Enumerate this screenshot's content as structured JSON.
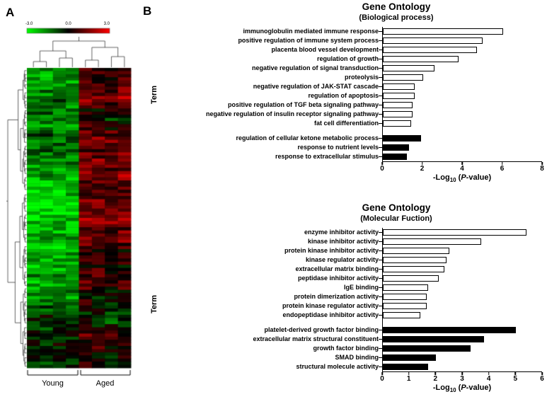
{
  "figure": {
    "panelA_label": "A",
    "panelB_label": "B"
  },
  "panelA": {
    "colorbar": {
      "ticks": [
        "-3.0",
        "0.0",
        "3.0"
      ]
    },
    "group_labels": [
      "Young",
      "Aged"
    ],
    "heatmap": {
      "rows": 96,
      "cols": 8,
      "young_cols": 4,
      "seed": 11,
      "vmin": -3,
      "vmax": 3,
      "low_color": "#00ff00",
      "mid_color": "#000000",
      "high_color": "#ff0000"
    }
  },
  "chart_data": [
    {
      "type": "heatmap",
      "description": "hierarchically clustered gene expression heatmap",
      "rows": 96,
      "cols": 8,
      "column_groups": [
        {
          "label": "Young",
          "cols": 4
        },
        {
          "label": "Aged",
          "cols": 4
        }
      ],
      "scale": {
        "min": -3.0,
        "max": 3.0,
        "low": "#00ff00",
        "mid": "#000000",
        "high": "#ff0000"
      }
    },
    {
      "type": "bar",
      "orientation": "horizontal",
      "title": "Gene Ontology",
      "subtitle": "(Biological process)",
      "ylabel": "Term",
      "xlabel": "-Log10 (P-value)",
      "xlim": [
        0,
        8
      ],
      "xticks": [
        0,
        2,
        4,
        6,
        8
      ],
      "series": [
        {
          "name": "open-bars",
          "fill": "#ffffff",
          "bars": [
            {
              "label": "immunoglobulin mediated immune response",
              "value": 6.0
            },
            {
              "label": "positive regulation of immune system process",
              "value": 5.0
            },
            {
              "label": "placenta blood vessel development",
              "value": 4.7
            },
            {
              "label": "regulation of growth",
              "value": 3.8
            },
            {
              "label": "negative regulation of signal transduction",
              "value": 2.6
            },
            {
              "label": "proteolysis",
              "value": 2.0
            },
            {
              "label": "negative regulation of JAK-STAT cascade",
              "value": 1.6
            },
            {
              "label": "regulation of apoptosis",
              "value": 1.6
            },
            {
              "label": "positive regulation of TGF beta signaling pathway",
              "value": 1.5
            },
            {
              "label": "negative regulation of insulin receptor signaling pathway",
              "value": 1.5
            },
            {
              "label": "fat cell differentiation",
              "value": 1.4
            }
          ]
        },
        {
          "name": "filled-bars",
          "fill": "#000000",
          "bars": [
            {
              "label": "regulation of cellular ketone metabolic process",
              "value": 1.9
            },
            {
              "label": "response to nutrient levels",
              "value": 1.3
            },
            {
              "label": "response to extracellular stimulus",
              "value": 1.2
            }
          ]
        }
      ]
    },
    {
      "type": "bar",
      "orientation": "horizontal",
      "title": "Gene Ontology",
      "subtitle": "(Molecular Fuction)",
      "ylabel": "Term",
      "xlabel": "-Log10 (P-value)",
      "xlim": [
        0,
        6
      ],
      "xticks": [
        0,
        1,
        2,
        3,
        4,
        5,
        6
      ],
      "series": [
        {
          "name": "open-bars",
          "fill": "#ffffff",
          "bars": [
            {
              "label": "enzyme inhibitor activity",
              "value": 5.4
            },
            {
              "label": "kinase inhibitor activity",
              "value": 3.7
            },
            {
              "label": "protein kinase inhibitor activity",
              "value": 2.5
            },
            {
              "label": "kinase regulator activity",
              "value": 2.4
            },
            {
              "label": "extracellular matrix binding",
              "value": 2.3
            },
            {
              "label": "peptidase inhibitor activity",
              "value": 2.1
            },
            {
              "label": "IgE binding",
              "value": 1.7
            },
            {
              "label": "protein dimerization activity",
              "value": 1.65
            },
            {
              "label": "protein kinase regulator activity",
              "value": 1.65
            },
            {
              "label": "endopeptidase inhibitor activity",
              "value": 1.4
            }
          ]
        },
        {
          "name": "filled-bars",
          "fill": "#000000",
          "bars": [
            {
              "label": "platelet-derived growth factor binding",
              "value": 5.0
            },
            {
              "label": "extracellular matrix structural constituent",
              "value": 3.8
            },
            {
              "label": "growth factor binding",
              "value": 3.3
            },
            {
              "label": "SMAD binding",
              "value": 2.0
            },
            {
              "label": "structural molecule activity",
              "value": 1.7
            }
          ]
        }
      ]
    }
  ]
}
